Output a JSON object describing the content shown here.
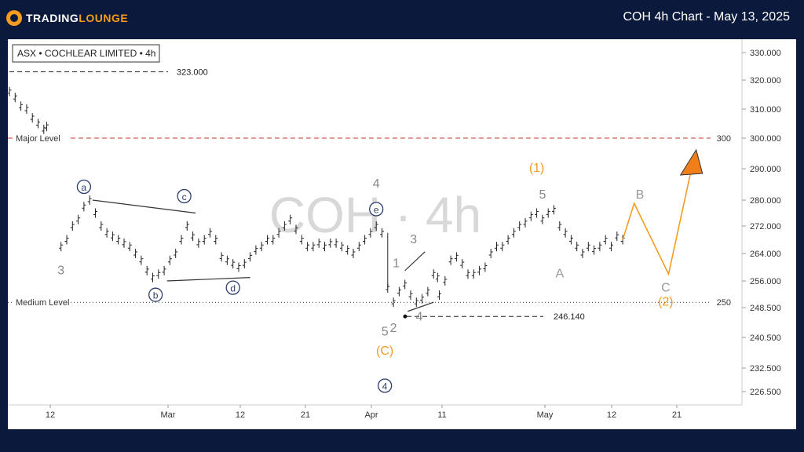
{
  "header": {
    "logo_prefix": "TRADING",
    "logo_suffix": "LOUNGE",
    "title": "COH 4h Chart - May 13, 2025"
  },
  "chart_data": {
    "type": "candlestick",
    "symbol_label": "ASX • COCHLEAR LIMITED • 4h",
    "watermark": "COH · 4h",
    "y_ticks": [
      "330.000",
      "320.000",
      "310.000",
      "300.000",
      "290.000",
      "280.000",
      "272.000",
      "264.000",
      "256.000",
      "248.500",
      "240.500",
      "232.500",
      "226.500"
    ],
    "x_ticks": [
      "12",
      "Mar",
      "12",
      "21",
      "Apr",
      "11",
      "May",
      "12",
      "21"
    ],
    "levels": [
      {
        "name": "Major Level",
        "value": 300,
        "tag": "300",
        "color": "#d32f2f",
        "style": "dashed"
      },
      {
        "name": "Medium Level",
        "value": 250,
        "tag": "250",
        "color": "#333333",
        "style": "dotted"
      }
    ],
    "price_markers": [
      {
        "label": "323.000",
        "value": 323
      },
      {
        "label": "246.140",
        "value": 246.14
      }
    ],
    "prices": [
      {
        "d": 0,
        "v": 316
      },
      {
        "d": 1,
        "v": 314
      },
      {
        "d": 2,
        "v": 311
      },
      {
        "d": 3,
        "v": 310
      },
      {
        "d": 4,
        "v": 307
      },
      {
        "d": 5,
        "v": 305
      },
      {
        "d": 6,
        "v": 303
      },
      {
        "d": 6.5,
        "v": 304
      },
      {
        "d": 9,
        "v": 266
      },
      {
        "d": 10,
        "v": 268
      },
      {
        "d": 11,
        "v": 272
      },
      {
        "d": 12,
        "v": 274
      },
      {
        "d": 13,
        "v": 278
      },
      {
        "d": 14,
        "v": 280
      },
      {
        "d": 15,
        "v": 276
      },
      {
        "d": 16,
        "v": 272
      },
      {
        "d": 17,
        "v": 270
      },
      {
        "d": 18,
        "v": 269
      },
      {
        "d": 19,
        "v": 268
      },
      {
        "d": 20,
        "v": 267
      },
      {
        "d": 21,
        "v": 266
      },
      {
        "d": 22,
        "v": 264
      },
      {
        "d": 23,
        "v": 262
      },
      {
        "d": 24,
        "v": 259
      },
      {
        "d": 25,
        "v": 257
      },
      {
        "d": 26,
        "v": 258
      },
      {
        "d": 27,
        "v": 259
      },
      {
        "d": 28,
        "v": 262
      },
      {
        "d": 29,
        "v": 264
      },
      {
        "d": 30,
        "v": 268
      },
      {
        "d": 31,
        "v": 272
      },
      {
        "d": 32,
        "v": 269
      },
      {
        "d": 33,
        "v": 267
      },
      {
        "d": 34,
        "v": 268
      },
      {
        "d": 35,
        "v": 270
      },
      {
        "d": 36,
        "v": 268
      },
      {
        "d": 37,
        "v": 263
      },
      {
        "d": 38,
        "v": 262
      },
      {
        "d": 39,
        "v": 261
      },
      {
        "d": 40,
        "v": 260
      },
      {
        "d": 41,
        "v": 261
      },
      {
        "d": 42,
        "v": 263
      },
      {
        "d": 43,
        "v": 265
      },
      {
        "d": 44,
        "v": 266
      },
      {
        "d": 45,
        "v": 268
      },
      {
        "d": 46,
        "v": 268
      },
      {
        "d": 47,
        "v": 270
      },
      {
        "d": 48,
        "v": 272
      },
      {
        "d": 49,
        "v": 274
      },
      {
        "d": 50,
        "v": 271
      },
      {
        "d": 51,
        "v": 268
      },
      {
        "d": 52,
        "v": 266
      },
      {
        "d": 53,
        "v": 266
      },
      {
        "d": 54,
        "v": 267
      },
      {
        "d": 55,
        "v": 266
      },
      {
        "d": 56,
        "v": 267
      },
      {
        "d": 57,
        "v": 267
      },
      {
        "d": 58,
        "v": 266
      },
      {
        "d": 59,
        "v": 265
      },
      {
        "d": 60,
        "v": 264
      },
      {
        "d": 61,
        "v": 266
      },
      {
        "d": 62,
        "v": 268
      },
      {
        "d": 63,
        "v": 270
      },
      {
        "d": 64,
        "v": 272
      },
      {
        "d": 65,
        "v": 270
      },
      {
        "d": 66,
        "v": 254
      },
      {
        "d": 67,
        "v": 250
      },
      {
        "d": 68,
        "v": 253
      },
      {
        "d": 69,
        "v": 255
      },
      {
        "d": 70,
        "v": 252
      },
      {
        "d": 71,
        "v": 250
      },
      {
        "d": 72,
        "v": 251
      },
      {
        "d": 73,
        "v": 253
      },
      {
        "d": 74,
        "v": 258
      },
      {
        "d": 74.7,
        "v": 257
      },
      {
        "d": 75,
        "v": 252
      },
      {
        "d": 76,
        "v": 256
      },
      {
        "d": 77,
        "v": 262
      },
      {
        "d": 78,
        "v": 263
      },
      {
        "d": 79,
        "v": 261
      },
      {
        "d": 80,
        "v": 258
      },
      {
        "d": 81,
        "v": 258
      },
      {
        "d": 82,
        "v": 259
      },
      {
        "d": 83,
        "v": 260
      },
      {
        "d": 84,
        "v": 264
      },
      {
        "d": 85,
        "v": 266
      },
      {
        "d": 86,
        "v": 266
      },
      {
        "d": 87,
        "v": 268
      },
      {
        "d": 88,
        "v": 270
      },
      {
        "d": 89,
        "v": 272
      },
      {
        "d": 90,
        "v": 273
      },
      {
        "d": 91,
        "v": 275
      },
      {
        "d": 92,
        "v": 276
      },
      {
        "d": 93,
        "v": 274
      },
      {
        "d": 94,
        "v": 276
      },
      {
        "d": 95,
        "v": 277
      },
      {
        "d": 96,
        "v": 272
      },
      {
        "d": 97,
        "v": 270
      },
      {
        "d": 98,
        "v": 268
      },
      {
        "d": 99,
        "v": 266
      },
      {
        "d": 100,
        "v": 264
      },
      {
        "d": 101,
        "v": 266
      },
      {
        "d": 102,
        "v": 265
      },
      {
        "d": 103,
        "v": 266
      },
      {
        "d": 104,
        "v": 268
      },
      {
        "d": 105,
        "v": 266
      },
      {
        "d": 106,
        "v": 269
      },
      {
        "d": 107,
        "v": 268
      }
    ],
    "projection": [
      {
        "d": 107,
        "v": 268
      },
      {
        "d": 109,
        "v": 279
      },
      {
        "d": 115,
        "v": 258
      },
      {
        "d": 119,
        "v": 290
      }
    ],
    "wave_labels": [
      {
        "text": "3",
        "d": 9,
        "v": 258,
        "color": "#888888",
        "circle": false
      },
      {
        "text": "a",
        "d": 13,
        "v": 283,
        "color": "#2b3d6b",
        "circle": true
      },
      {
        "text": "b",
        "d": 25.5,
        "v": 251,
        "color": "#2b3d6b",
        "circle": true
      },
      {
        "text": "c",
        "d": 30.5,
        "v": 280,
        "color": "#2b3d6b",
        "circle": true
      },
      {
        "text": "d",
        "d": 39,
        "v": 253,
        "color": "#2b3d6b",
        "circle": true
      },
      {
        "text": "4",
        "d": 64,
        "v": 284,
        "color": "#888888",
        "circle": false
      },
      {
        "text": "e",
        "d": 64,
        "v": 276,
        "color": "#2b3d6b",
        "circle": true
      },
      {
        "text": "1",
        "d": 67.5,
        "v": 260,
        "color": "#888888",
        "circle": false
      },
      {
        "text": "3",
        "d": 70.5,
        "v": 267,
        "color": "#888888",
        "circle": false
      },
      {
        "text": "2",
        "d": 67,
        "v": 242,
        "color": "#888888",
        "circle": false
      },
      {
        "text": "4",
        "d": 71.5,
        "v": 245,
        "color": "#888888",
        "circle": false
      },
      {
        "text": "5",
        "d": 65.5,
        "v": 241,
        "color": "#888888",
        "circle": false
      },
      {
        "text": "(C)",
        "d": 65.5,
        "v": 236,
        "color": "#f39c1f",
        "circle": false
      },
      {
        "text": "4",
        "d": 65.5,
        "v": 227,
        "color": "#2b3d6b",
        "circle": true
      },
      {
        "text": "(1)",
        "d": 92,
        "v": 289,
        "color": "#f39c1f",
        "circle": false
      },
      {
        "text": "5",
        "d": 93,
        "v": 280.5,
        "color": "#888888",
        "circle": false
      },
      {
        "text": "A",
        "d": 96,
        "v": 257,
        "color": "#999999",
        "circle": false
      },
      {
        "text": "B",
        "d": 110,
        "v": 280.5,
        "color": "#999999",
        "circle": false
      },
      {
        "text": "C",
        "d": 114.5,
        "v": 253,
        "color": "#999999",
        "circle": false
      },
      {
        "text": "(2)",
        "d": 114.5,
        "v": 249,
        "color": "#f39c1f",
        "circle": false
      }
    ]
  }
}
